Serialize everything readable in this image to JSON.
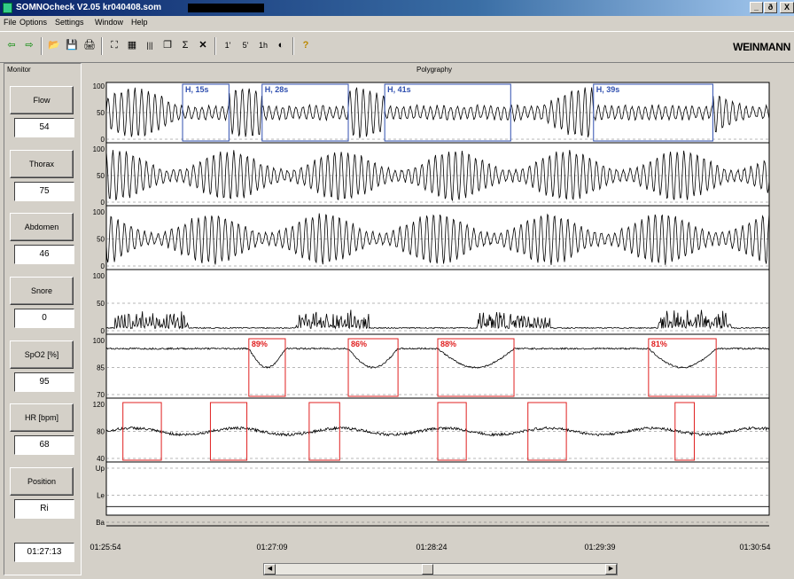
{
  "window": {
    "title": "SOMNOcheck V2.05   kr040408.som",
    "buttons": {
      "minimize": "_",
      "maximize": "ð",
      "close": "X"
    }
  },
  "menu": [
    "File",
    "Options",
    "Settings",
    "Window",
    "Help"
  ],
  "toolbar": {
    "glyphs": [
      "⇦",
      "⇨",
      "📂",
      "💾",
      "🖨",
      "⛶",
      "▦",
      "|||",
      "❐",
      "Σ",
      "✕",
      "1'",
      "5'",
      "1h",
      "◐",
      "?"
    ],
    "logo": "WEINMANN"
  },
  "monitor": {
    "label": "Monitor",
    "channels": [
      {
        "name": "Flow",
        "value": "54"
      },
      {
        "name": "Thorax",
        "value": "75"
      },
      {
        "name": "Abdomen",
        "value": "46"
      },
      {
        "name": "Snore",
        "value": "0"
      },
      {
        "name": "SpO2 [%]",
        "value": "95"
      },
      {
        "name": "HR [bpm]",
        "value": "68"
      },
      {
        "name": "Position",
        "value": "Ri"
      }
    ],
    "time": "01:27:13"
  },
  "polygraphy": {
    "title": "Polygraphy",
    "time_ticks": [
      "01:25:54",
      "01:27:09",
      "01:28:24",
      "01:29:39",
      "01:30:54"
    ],
    "colors": {
      "event_blue": "#3050b0",
      "event_red": "#e02020",
      "grid": "#707070"
    }
  },
  "chart_data": [
    {
      "type": "line",
      "title": "Flow",
      "ylim": [
        0,
        100
      ],
      "y_ticks": [
        "100",
        "50",
        "0"
      ],
      "events": [
        {
          "label": "H, 15s",
          "start": 0.115,
          "end": 0.185
        },
        {
          "label": "H, 28s",
          "start": 0.235,
          "end": 0.365
        },
        {
          "label": "H, 41s",
          "start": 0.42,
          "end": 0.61
        },
        {
          "label": "H, 39s",
          "start": 0.735,
          "end": 0.915
        }
      ]
    },
    {
      "type": "line",
      "title": "Thorax",
      "ylim": [
        0,
        100
      ],
      "y_ticks": [
        "100",
        "50",
        "0"
      ]
    },
    {
      "type": "line",
      "title": "Abdomen",
      "ylim": [
        0,
        100
      ],
      "y_ticks": [
        "100",
        "50",
        "0"
      ]
    },
    {
      "type": "line",
      "title": "Snore",
      "ylim": [
        0,
        100
      ],
      "y_ticks": [
        "100",
        "50",
        "0"
      ]
    },
    {
      "type": "line",
      "title": "SpO2 [%]",
      "ylim": [
        70,
        100
      ],
      "y_ticks": [
        "100",
        "85",
        "70"
      ],
      "events": [
        {
          "label": "89%",
          "start": 0.215,
          "end": 0.27
        },
        {
          "label": "86%",
          "start": 0.365,
          "end": 0.44
        },
        {
          "label": "88%",
          "start": 0.5,
          "end": 0.615
        },
        {
          "label": "81%",
          "start": 0.818,
          "end": 0.92
        }
      ]
    },
    {
      "type": "line",
      "title": "HR [bpm]",
      "ylim": [
        40,
        120
      ],
      "y_ticks": [
        "120",
        "80",
        "40"
      ],
      "events": [
        {
          "label": "",
          "start": 0.025,
          "end": 0.083
        },
        {
          "label": "",
          "start": 0.157,
          "end": 0.212
        },
        {
          "label": "",
          "start": 0.306,
          "end": 0.352
        },
        {
          "label": "",
          "start": 0.5,
          "end": 0.543
        },
        {
          "label": "",
          "start": 0.636,
          "end": 0.694
        },
        {
          "label": "",
          "start": 0.858,
          "end": 0.887
        }
      ]
    },
    {
      "type": "line",
      "title": "Position",
      "y_ticks": [
        "Up",
        "Le",
        "Ba"
      ]
    }
  ]
}
